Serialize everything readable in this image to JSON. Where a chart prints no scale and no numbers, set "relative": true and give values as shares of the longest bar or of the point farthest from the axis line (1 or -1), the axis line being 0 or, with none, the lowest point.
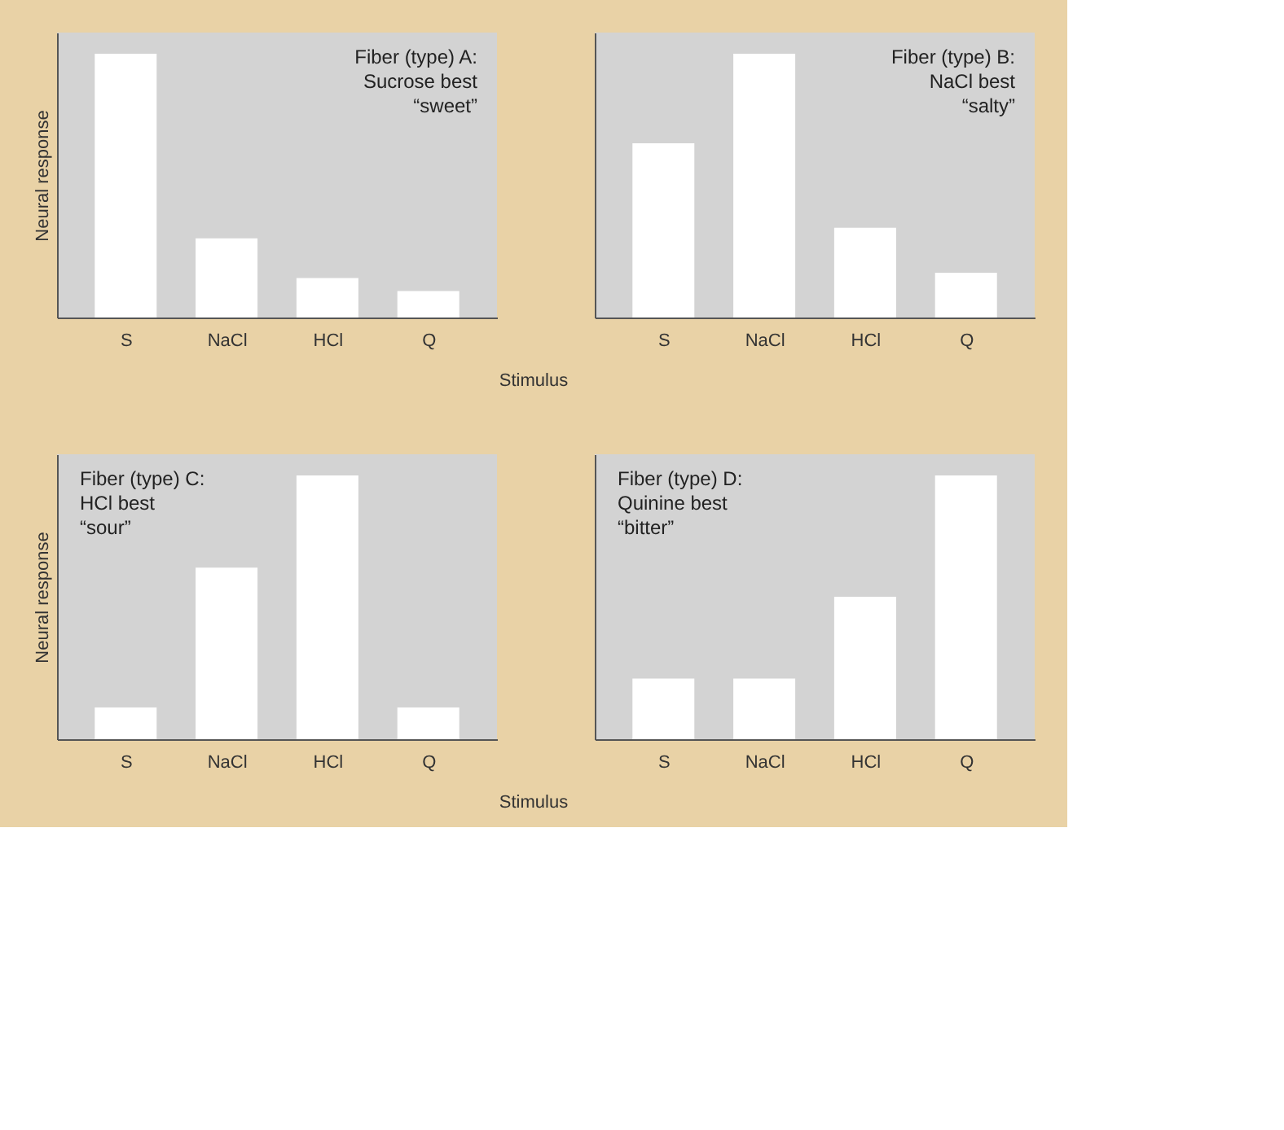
{
  "chart_data": [
    {
      "type": "bar",
      "relative": true,
      "categories": [
        "S",
        "NaCl",
        "HCl",
        "Q"
      ],
      "values": [
        1,
        0.3,
        0.15,
        0.1
      ],
      "color": "#ffffff",
      "ylabel": "Neural response",
      "xlabel": "Stimulus",
      "annotations": [
        "Fiber (type) A:\nSucrose best\n“sweet”"
      ]
    },
    {
      "type": "bar",
      "relative": true,
      "categories": [
        "S",
        "NaCl",
        "HCl",
        "Q"
      ],
      "values": [
        0.66,
        1,
        0.34,
        0.17
      ],
      "color": "#ffffff",
      "annotations": [
        "Fiber (type) B:\nNaCl best\n“salty”"
      ]
    },
    {
      "type": "bar",
      "relative": true,
      "categories": [
        "S",
        "NaCl",
        "HCl",
        "Q"
      ],
      "values": [
        0.12,
        0.65,
        1,
        0.12
      ],
      "color": "#ffffff",
      "ylabel": "Neural response",
      "xlabel": "Stimulus",
      "annotations": [
        "Fiber (type) C:\nHCl best\n“sour”"
      ]
    },
    {
      "type": "bar",
      "relative": true,
      "categories": [
        "S",
        "NaCl",
        "HCl",
        "Q"
      ],
      "values": [
        0.23,
        0.23,
        0.54,
        1
      ],
      "color": "#ffffff",
      "annotations": [
        "Fiber (type) D:\nQuinine best\n“bitter”"
      ]
    }
  ]
}
